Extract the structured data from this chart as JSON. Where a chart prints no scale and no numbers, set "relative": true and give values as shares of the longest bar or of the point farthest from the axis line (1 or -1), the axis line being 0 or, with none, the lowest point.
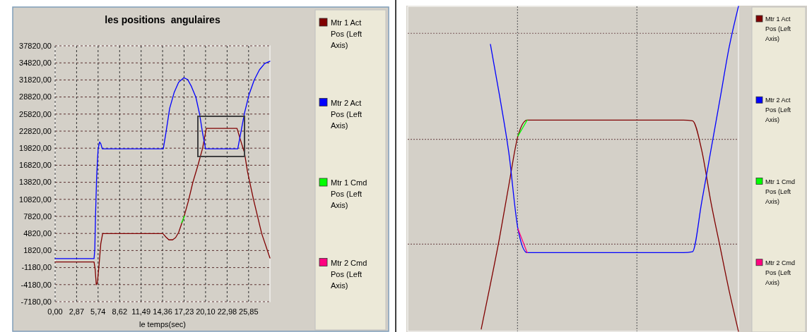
{
  "chart_data": [
    {
      "type": "line",
      "title": "les positions  angulaires",
      "xlabel": "le temps(sec)",
      "xlim": [
        0,
        28.7
      ],
      "xticks": [
        {
          "value": 0,
          "label": "0,00"
        },
        {
          "value": 2.87,
          "label": "2,87"
        },
        {
          "value": 5.74,
          "label": "5,74"
        },
        {
          "value": 8.62,
          "label": "8,62"
        },
        {
          "value": 11.49,
          "label": "11,49"
        },
        {
          "value": 14.36,
          "label": "14,36"
        },
        {
          "value": 17.23,
          "label": "17,23"
        },
        {
          "value": 20.1,
          "label": "20,10"
        },
        {
          "value": 22.98,
          "label": "22,98"
        },
        {
          "value": 25.85,
          "label": "25,85"
        }
      ],
      "ylim": [
        -7180,
        37820
      ],
      "yticks": [
        {
          "value": -7180,
          "label": "-7180,00"
        },
        {
          "value": -4180,
          "label": "-4180,00"
        },
        {
          "value": -1180,
          "label": "-1180,00"
        },
        {
          "value": 1820,
          "label": "1820,00"
        },
        {
          "value": 4820,
          "label": "4820,00"
        },
        {
          "value": 7820,
          "label": "7820,00"
        },
        {
          "value": 10820,
          "label": "10820,00"
        },
        {
          "value": 13820,
          "label": "13820,00"
        },
        {
          "value": 16820,
          "label": "16820,00"
        },
        {
          "value": 19820,
          "label": "19820,00"
        },
        {
          "value": 22820,
          "label": "22820,00"
        },
        {
          "value": 25820,
          "label": "25820,00"
        },
        {
          "value": 28820,
          "label": "28820,00"
        },
        {
          "value": 31820,
          "label": "31820,00"
        },
        {
          "value": 34820,
          "label": "34820,00"
        },
        {
          "value": 37820,
          "label": "37820,00"
        }
      ],
      "grid": true,
      "legend": "right",
      "series": [
        {
          "name": "Mtr 1 Act Pos (Left Axis)",
          "color": "#800000",
          "x": [
            0,
            5.2,
            5.35,
            5.5,
            5.65,
            5.85,
            6.1,
            6.35,
            14.4,
            14.8,
            15.2,
            15.7,
            16.1,
            16.5,
            17.2,
            17.8,
            18.4,
            19.1,
            19.7,
            20.2,
            24.3,
            24.8,
            25.3,
            25.7,
            26.5,
            27.6,
            28.7
          ],
          "values": [
            -200,
            -200,
            -1500,
            -4200,
            -3800,
            -1000,
            3000,
            4800,
            4800,
            4200,
            3700,
            3700,
            4100,
            5000,
            7700,
            10500,
            13800,
            16900,
            19800,
            23300,
            23300,
            21100,
            19000,
            15700,
            10800,
            4800,
            500
          ]
        },
        {
          "name": "Mtr 2 Act Pos (Left Axis)",
          "color": "#0000ff",
          "x": [
            0,
            5.2,
            5.3,
            5.4,
            5.55,
            5.75,
            5.95,
            6.1,
            6.3,
            14.45,
            14.8,
            15.3,
            15.9,
            16.5,
            17.2,
            17.7,
            18.2,
            18.8,
            19.3,
            19.7,
            20.1,
            24.4,
            24.8,
            25.3,
            25.9,
            26.6,
            27.3,
            28,
            28.7
          ],
          "values": [
            400,
            400,
            2000,
            8000,
            14900,
            19800,
            20900,
            20600,
            19700,
            19700,
            22500,
            26800,
            29600,
            31400,
            32200,
            31900,
            30700,
            28800,
            25800,
            22500,
            19700,
            19700,
            22500,
            26000,
            29200,
            31800,
            33600,
            34700,
            35100
          ]
        },
        {
          "name": "Mtr 1 Cmd Pos (Left Axis)",
          "color": "#00ff00",
          "x": [
            16.9,
            17.3
          ],
          "values": [
            6700,
            7900
          ]
        },
        {
          "name": "Mtr 2 Cmd Pos (Left Axis)",
          "color": "#ff0080"
        }
      ]
    },
    {
      "type": "line",
      "relative": true,
      "legend": "right",
      "categories": [
        null,
        null,
        null,
        null,
        null,
        null,
        null,
        null,
        null,
        null,
        null,
        null,
        null,
        null,
        null,
        null,
        null,
        null,
        null,
        null,
        null,
        null,
        null,
        null,
        null,
        null,
        null,
        null,
        null,
        null,
        null,
        null,
        null,
        null,
        null,
        null,
        null
      ],
      "ref_lines": [
        {
          "axis": "y",
          "value": 0.917,
          "color": "#7a5a5a",
          "line_style": "dotted"
        },
        {
          "axis": "y",
          "value": 0.591,
          "color": "#7a5a5a",
          "line_style": "dotted"
        },
        {
          "axis": "y",
          "value": 0.268,
          "color": "#7a5a5a",
          "line_style": "dotted"
        }
      ],
      "series": [
        {
          "name": "Mtr 1 Act Pos (Left Axis)",
          "color": "#800000",
          "values": [
            null,
            null,
            null,
            null,
            null,
            null,
            null,
            null,
            0.007,
            0.145,
            0.289,
            0.449,
            0.601,
            0.65,
            0.65,
            0.65,
            0.65,
            0.65,
            0.65,
            0.65,
            0.65,
            0.65,
            0.65,
            0.65,
            0.65,
            0.65,
            0.65,
            0.65,
            0.65,
            0.65,
            0.65,
            0.648,
            0.557,
            0.398,
            0.26,
            0.123,
            0
          ]
        },
        {
          "name": "Mtr 2 Act Pos (Left Axis)",
          "color": "#0000ff",
          "values": [
            null,
            null,
            null,
            null,
            null,
            null,
            null,
            null,
            null,
            0.883,
            0.724,
            0.55,
            0.315,
            0.242,
            0.242,
            0.242,
            0.242,
            0.242,
            0.242,
            0.242,
            0.242,
            0.242,
            0.242,
            0.242,
            0.242,
            0.242,
            0.242,
            0.242,
            0.242,
            0.242,
            0.242,
            0.245,
            0.398,
            0.557,
            0.716,
            0.876,
            1
          ]
        },
        {
          "name": "Mtr 1 Cmd Pos (Left Axis)",
          "color": "#00ff00",
          "values": [
            null,
            null,
            null,
            null,
            null,
            null,
            null,
            null,
            null,
            null,
            null,
            null,
            0.601,
            0.65,
            null,
            null,
            null,
            null,
            null,
            null,
            null,
            null,
            null,
            null,
            null,
            null,
            null,
            null,
            null,
            null,
            null,
            null,
            null,
            null,
            null,
            null,
            null
          ]
        },
        {
          "name": "Mtr 2 Cmd Pos (Left Axis)",
          "color": "#ff0080",
          "values": [
            null,
            null,
            null,
            null,
            null,
            null,
            null,
            null,
            null,
            null,
            null,
            null,
            0.315,
            0.242,
            null,
            null,
            null,
            null,
            null,
            null,
            null,
            null,
            null,
            null,
            null,
            null,
            null,
            null,
            null,
            null,
            null,
            null,
            null,
            null,
            null,
            null,
            null
          ]
        }
      ]
    }
  ]
}
